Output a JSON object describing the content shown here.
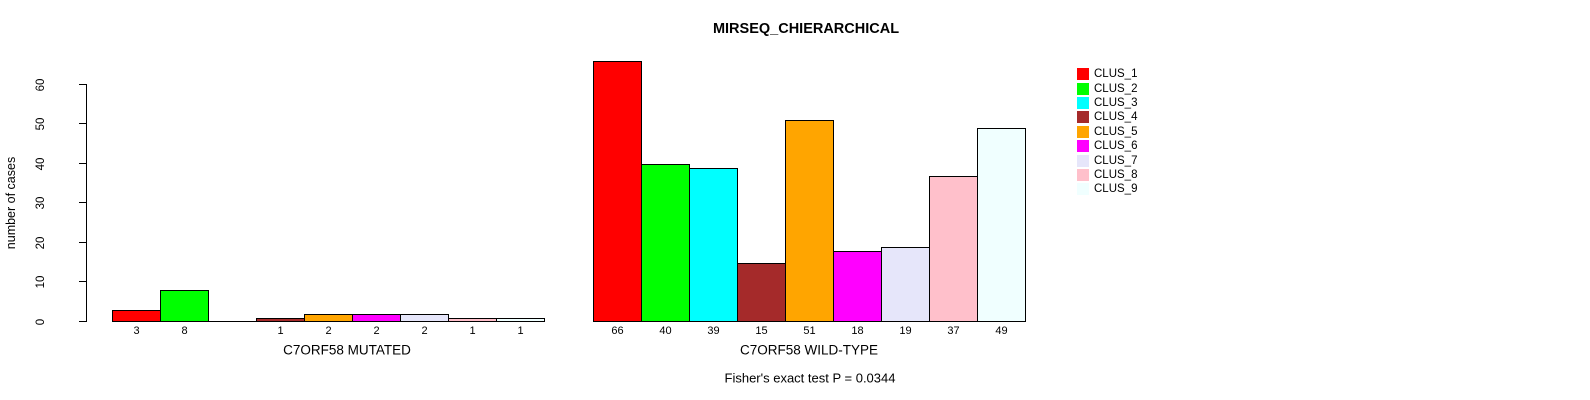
{
  "chart_data": {
    "type": "bar",
    "title": "MIRSEQ_CHIERARCHICAL",
    "ylabel": "number of cases",
    "ylim": [
      0,
      60
    ],
    "yticks": [
      0,
      10,
      20,
      30,
      40,
      50,
      60
    ],
    "grid": false,
    "legend_position": "right",
    "annotation": "Fisher's exact test P = 0.0344",
    "clusters": [
      {
        "name": "CLUS_1",
        "color": "#FF0000"
      },
      {
        "name": "CLUS_2",
        "color": "#00FF00"
      },
      {
        "name": "CLUS_3",
        "color": "#00FFFF"
      },
      {
        "name": "CLUS_4",
        "color": "#A52A2A"
      },
      {
        "name": "CLUS_5",
        "color": "#FFA500"
      },
      {
        "name": "CLUS_6",
        "color": "#FF00FF"
      },
      {
        "name": "CLUS_7",
        "color": "#E6E6FA"
      },
      {
        "name": "CLUS_8",
        "color": "#FFC0CB"
      },
      {
        "name": "CLUS_9",
        "color": "#F0FFFF"
      }
    ],
    "groups": [
      {
        "label": "C7ORF58 MUTATED",
        "values": [
          3,
          8,
          0,
          1,
          2,
          2,
          2,
          1,
          1
        ],
        "bar_labels": [
          "3",
          "8",
          "",
          "1",
          "2",
          "2",
          "2",
          "1",
          "1"
        ]
      },
      {
        "label": "C7ORF58 WILD-TYPE",
        "values": [
          66,
          40,
          39,
          15,
          51,
          18,
          19,
          37,
          49
        ],
        "bar_labels": [
          "66",
          "40",
          "39",
          "15",
          "51",
          "18",
          "19",
          "37",
          "49"
        ]
      }
    ],
    "colors": {
      "bar_border": "#000000",
      "axis": "#000000",
      "background": "#ffffff"
    }
  }
}
